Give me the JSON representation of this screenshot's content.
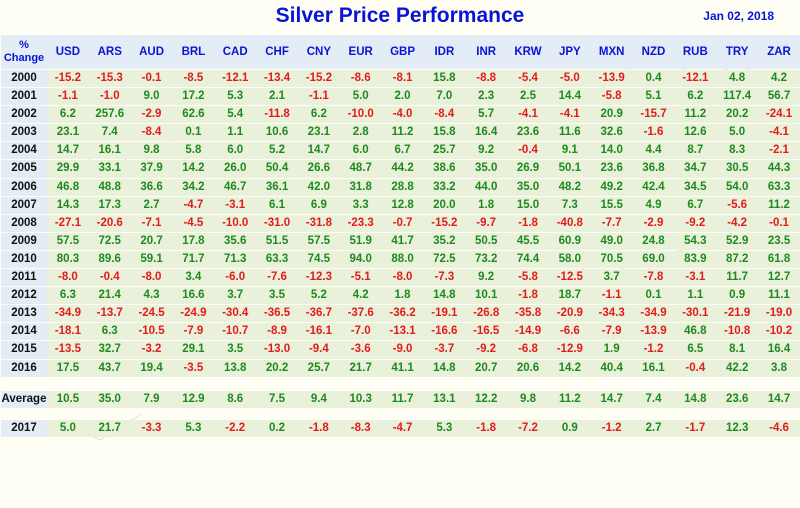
{
  "title": "Silver Price Performance",
  "date": "Jan 02, 2018",
  "colors": {
    "title": "#0a14d6",
    "positive": "#1e8a1e",
    "negative": "#e31b1b",
    "row_bg": "#e9f1da",
    "header_bg": "#e4ecf6"
  },
  "chart_data": {
    "type": "table",
    "title": "Silver Price Performance",
    "corner_label": "% Change",
    "columns": [
      "USD",
      "ARS",
      "AUD",
      "BRL",
      "CAD",
      "CHF",
      "CNY",
      "EUR",
      "GBP",
      "IDR",
      "INR",
      "KRW",
      "JPY",
      "MXN",
      "NZD",
      "RUB",
      "TRY",
      "ZAR"
    ],
    "rows": [
      {
        "label": "2000",
        "values": [
          "-15.2",
          "-15.3",
          "-0.1",
          "-8.5",
          "-12.1",
          "-13.4",
          "-15.2",
          "-8.6",
          "-8.1",
          "15.8",
          "-8.8",
          "-5.4",
          "-5.0",
          "-13.9",
          "0.4",
          "-12.1",
          "4.8",
          "4.2"
        ]
      },
      {
        "label": "2001",
        "values": [
          "-1.1",
          "-1.0",
          "9.0",
          "17.2",
          "5.3",
          "2.1",
          "-1.1",
          "5.0",
          "2.0",
          "7.0",
          "2.3",
          "2.5",
          "14.4",
          "-5.8",
          "5.1",
          "6.2",
          "117.4",
          "56.7"
        ]
      },
      {
        "label": "2002",
        "values": [
          "6.2",
          "257.6",
          "-2.9",
          "62.6",
          "5.4",
          "-11.8",
          "6.2",
          "-10.0",
          "-4.0",
          "-8.4",
          "5.7",
          "-4.1",
          "-4.1",
          "20.9",
          "-15.7",
          "11.2",
          "20.2",
          "-24.1"
        ]
      },
      {
        "label": "2003",
        "values": [
          "23.1",
          "7.4",
          "-8.4",
          "0.1",
          "1.1",
          "10.6",
          "23.1",
          "2.8",
          "11.2",
          "15.8",
          "16.4",
          "23.6",
          "11.6",
          "32.6",
          "-1.6",
          "12.6",
          "5.0",
          "-4.1"
        ]
      },
      {
        "label": "2004",
        "values": [
          "14.7",
          "16.1",
          "9.8",
          "5.8",
          "6.0",
          "5.2",
          "14.7",
          "6.0",
          "6.7",
          "25.7",
          "9.2",
          "-0.4",
          "9.1",
          "14.0",
          "4.4",
          "8.7",
          "8.3",
          "-2.1"
        ]
      },
      {
        "label": "2005",
        "values": [
          "29.9",
          "33.1",
          "37.9",
          "14.2",
          "26.0",
          "50.4",
          "26.6",
          "48.7",
          "44.2",
          "38.6",
          "35.0",
          "26.9",
          "50.1",
          "23.6",
          "36.8",
          "34.7",
          "30.5",
          "44.3"
        ]
      },
      {
        "label": "2006",
        "values": [
          "46.8",
          "48.8",
          "36.6",
          "34.2",
          "46.7",
          "36.1",
          "42.0",
          "31.8",
          "28.8",
          "33.2",
          "44.0",
          "35.0",
          "48.2",
          "49.2",
          "42.4",
          "34.5",
          "54.0",
          "63.3"
        ]
      },
      {
        "label": "2007",
        "values": [
          "14.3",
          "17.3",
          "2.7",
          "-4.7",
          "-3.1",
          "6.1",
          "6.9",
          "3.3",
          "12.8",
          "20.0",
          "1.8",
          "15.0",
          "7.3",
          "15.5",
          "4.9",
          "6.7",
          "-5.6",
          "11.2"
        ]
      },
      {
        "label": "2008",
        "values": [
          "-27.1",
          "-20.6",
          "-7.1",
          "-4.5",
          "-10.0",
          "-31.0",
          "-31.8",
          "-23.3",
          "-0.7",
          "-15.2",
          "-9.7",
          "-1.8",
          "-40.8",
          "-7.7",
          "-2.9",
          "-9.2",
          "-4.2",
          "-0.1"
        ]
      },
      {
        "label": "2009",
        "values": [
          "57.5",
          "72.5",
          "20.7",
          "17.8",
          "35.6",
          "51.5",
          "57.5",
          "51.9",
          "41.7",
          "35.2",
          "50.5",
          "45.5",
          "60.9",
          "49.0",
          "24.8",
          "54.3",
          "52.9",
          "23.5"
        ]
      },
      {
        "label": "2010",
        "values": [
          "80.3",
          "89.6",
          "59.1",
          "71.7",
          "71.3",
          "63.3",
          "74.5",
          "94.0",
          "88.0",
          "72.5",
          "73.2",
          "74.4",
          "58.0",
          "70.5",
          "69.0",
          "83.9",
          "87.2",
          "61.8"
        ]
      },
      {
        "label": "2011",
        "values": [
          "-8.0",
          "-0.4",
          "-8.0",
          "3.4",
          "-6.0",
          "-7.6",
          "-12.3",
          "-5.1",
          "-8.0",
          "-7.3",
          "9.2",
          "-5.8",
          "-12.5",
          "3.7",
          "-7.8",
          "-3.1",
          "11.7",
          "12.7"
        ]
      },
      {
        "label": "2012",
        "values": [
          "6.3",
          "21.4",
          "4.3",
          "16.6",
          "3.7",
          "3.5",
          "5.2",
          "4.2",
          "1.8",
          "14.8",
          "10.1",
          "-1.8",
          "18.7",
          "-1.1",
          "0.1",
          "1.1",
          "0.9",
          "11.1"
        ]
      },
      {
        "label": "2013",
        "values": [
          "-34.9",
          "-13.7",
          "-24.5",
          "-24.9",
          "-30.4",
          "-36.5",
          "-36.7",
          "-37.6",
          "-36.2",
          "-19.1",
          "-26.8",
          "-35.8",
          "-20.9",
          "-34.3",
          "-34.9",
          "-30.1",
          "-21.9",
          "-19.0"
        ]
      },
      {
        "label": "2014",
        "values": [
          "-18.1",
          "6.3",
          "-10.5",
          "-7.9",
          "-10.7",
          "-8.9",
          "-16.1",
          "-7.0",
          "-13.1",
          "-16.6",
          "-16.5",
          "-14.9",
          "-6.6",
          "-7.9",
          "-13.9",
          "46.8",
          "-10.8",
          "-10.2"
        ]
      },
      {
        "label": "2015",
        "values": [
          "-13.5",
          "32.7",
          "-3.2",
          "29.1",
          "3.5",
          "-13.0",
          "-9.4",
          "-3.6",
          "-9.0",
          "-3.7",
          "-9.2",
          "-6.8",
          "-12.9",
          "1.9",
          "-1.2",
          "6.5",
          "8.1",
          "16.4"
        ]
      },
      {
        "label": "2016",
        "values": [
          "17.5",
          "43.7",
          "19.4",
          "-3.5",
          "13.8",
          "20.2",
          "25.7",
          "21.7",
          "41.1",
          "14.8",
          "20.7",
          "20.6",
          "14.2",
          "40.4",
          "16.1",
          "-0.4",
          "42.2",
          "3.8"
        ]
      }
    ],
    "average": {
      "label": "Average",
      "values": [
        "10.5",
        "35.0",
        "7.9",
        "12.9",
        "8.6",
        "7.5",
        "9.4",
        "10.3",
        "11.7",
        "13.1",
        "12.2",
        "9.8",
        "11.2",
        "14.7",
        "7.4",
        "14.8",
        "23.6",
        "14.7"
      ]
    },
    "latest": {
      "label": "2017",
      "values": [
        "5.0",
        "21.7",
        "-3.3",
        "5.3",
        "-2.2",
        "0.2",
        "-1.8",
        "-8.3",
        "-4.7",
        "5.3",
        "-1.8",
        "-7.2",
        "0.9",
        "-1.2",
        "2.7",
        "-1.7",
        "12.3",
        "-4.6"
      ]
    }
  }
}
